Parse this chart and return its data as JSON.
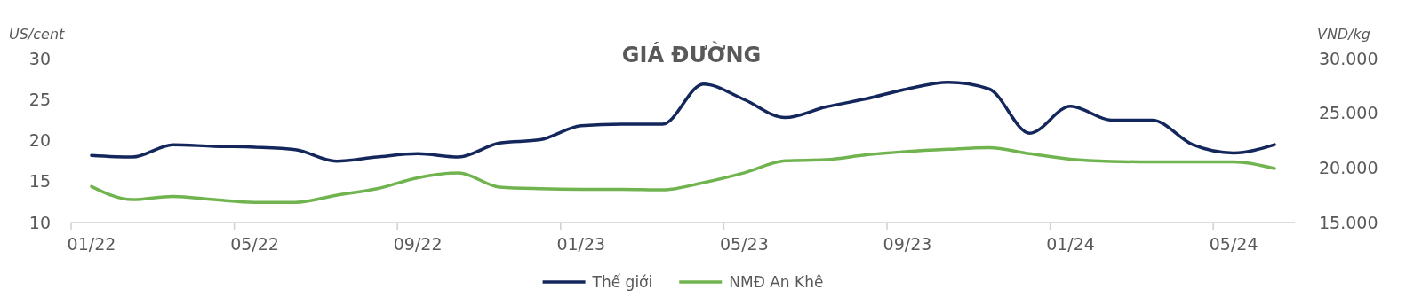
{
  "chart_data": {
    "type": "line",
    "title": "GIÁ ĐƯỜNG",
    "ylabel": "US/cent",
    "y2label": "VND/kg",
    "categories": [
      "01/22",
      null,
      null,
      null,
      "05/22",
      null,
      null,
      null,
      "09/22",
      null,
      null,
      null,
      "01/23",
      null,
      null,
      null,
      "05/23",
      null,
      null,
      null,
      "09/23",
      null,
      null,
      null,
      "01/24",
      null,
      null,
      null,
      "05/24",
      null
    ],
    "series": [
      {
        "name": "Thế giới",
        "color": "#14275c",
        "values": [
          18.2,
          18.0,
          19.5,
          19.3,
          19.2,
          18.9,
          17.5,
          18.0,
          18.4,
          18.0,
          19.7,
          20.1,
          21.8,
          22.0,
          22.0,
          26.9,
          25.0,
          22.8,
          24.1,
          25.1,
          26.3,
          27.1,
          26.3,
          20.9,
          24.2,
          22.5,
          22.5,
          19.5,
          18.5,
          19.5
        ]
      },
      {
        "name": "NMĐ An Khê",
        "color": "#70b450",
        "axis": "y2",
        "values": [
          18300,
          17100,
          17400,
          17100,
          16850,
          16850,
          17500,
          18100,
          19100,
          19550,
          18250,
          18100,
          18050,
          18050,
          18000,
          18650,
          19550,
          20650,
          20750,
          21200,
          21500,
          21700,
          21850,
          21300,
          20800,
          20600,
          20550,
          20550,
          20550,
          19950
        ]
      }
    ],
    "ylim": [
      10,
      30
    ],
    "yticks": [
      10,
      15,
      20,
      25,
      30
    ],
    "y2lim": [
      15000,
      30000
    ],
    "y2ticks": [
      {
        "value": 15000,
        "label": "15.000"
      },
      {
        "value": 20000,
        "label": "20.000"
      },
      {
        "value": 25000,
        "label": "25.000"
      },
      {
        "value": 30000,
        "label": "30.000"
      }
    ],
    "grid": false,
    "legend": "bottom",
    "marker": "none",
    "line_style": "solid"
  }
}
